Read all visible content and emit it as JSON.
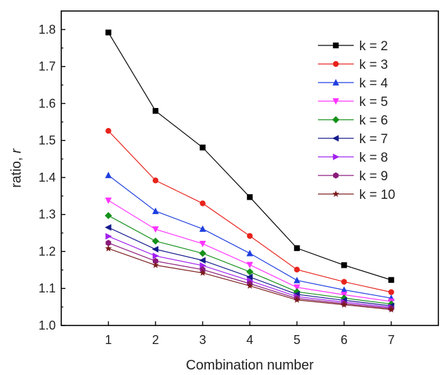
{
  "chart_data": {
    "type": "line",
    "title": "",
    "xlabel": "Combination number",
    "ylabel_main": "ratio, ",
    "ylabel_symbol": "r",
    "x": [
      1,
      2,
      3,
      4,
      5,
      6,
      7
    ],
    "xlim": [
      0,
      8
    ],
    "ylim": [
      1.0,
      1.85
    ],
    "x_ticks": [
      1,
      2,
      3,
      4,
      5,
      6,
      7
    ],
    "y_ticks": [
      1.0,
      1.1,
      1.2,
      1.3,
      1.4,
      1.5,
      1.6,
      1.7,
      1.8
    ],
    "grid": false,
    "legend_position": "top-right",
    "series": [
      {
        "name": "k = 2",
        "color": "#000000",
        "marker": "square",
        "values": [
          1.792,
          1.58,
          1.481,
          1.347,
          1.209,
          1.163,
          1.123
        ]
      },
      {
        "name": "k = 3",
        "color": "#e8231c",
        "marker": "circle",
        "values": [
          1.526,
          1.392,
          1.33,
          1.242,
          1.151,
          1.118,
          1.09
        ]
      },
      {
        "name": "k = 4",
        "color": "#1f3fe0",
        "marker": "triangle-up",
        "values": [
          1.406,
          1.309,
          1.261,
          1.195,
          1.122,
          1.096,
          1.074
        ]
      },
      {
        "name": "k = 5",
        "color": "#ff33ff",
        "marker": "triangle-down",
        "values": [
          1.338,
          1.26,
          1.221,
          1.164,
          1.103,
          1.083,
          1.065
        ]
      },
      {
        "name": "k = 6",
        "color": "#15911a",
        "marker": "diamond",
        "values": [
          1.297,
          1.228,
          1.195,
          1.145,
          1.091,
          1.074,
          1.058
        ]
      },
      {
        "name": "k = 7",
        "color": "#141a8c",
        "marker": "triangle-left",
        "values": [
          1.265,
          1.206,
          1.176,
          1.131,
          1.084,
          1.068,
          1.053
        ]
      },
      {
        "name": "k = 8",
        "color": "#a020f0",
        "marker": "triangle-right",
        "values": [
          1.241,
          1.188,
          1.162,
          1.121,
          1.078,
          1.063,
          1.049
        ]
      },
      {
        "name": "k = 9",
        "color": "#8a1a7a",
        "marker": "hexagon",
        "values": [
          1.223,
          1.174,
          1.151,
          1.113,
          1.073,
          1.059,
          1.046
        ]
      },
      {
        "name": "k = 10",
        "color": "#7a1a1a",
        "marker": "star",
        "values": [
          1.208,
          1.163,
          1.142,
          1.107,
          1.069,
          1.056,
          1.043
        ]
      }
    ]
  }
}
